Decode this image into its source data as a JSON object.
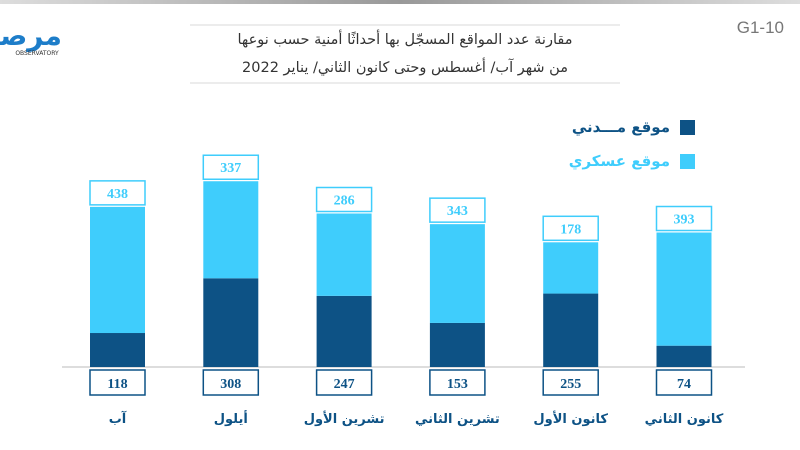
{
  "code": "G1-10",
  "logo": {
    "text": "مرصد",
    "subtitle": "OBSERVATORY"
  },
  "chart_data": {
    "type": "bar",
    "stacked": true,
    "title": "مقارنة عدد المواقع المسجّل بها أحداثًا أمنية حسب نوعها",
    "subtitle": "من شهر آب/ أغسطس وحتى كانون الثاني/ يناير 2022",
    "categories": [
      "آب",
      "أيلول",
      "تشرين الأول",
      "تشرين الثاني",
      "كانون الأول",
      "كانون الثاني"
    ],
    "series": [
      {
        "name": "موقع مـــدني",
        "color": "#0d5285",
        "values": [
          118,
          308,
          247,
          153,
          255,
          74
        ]
      },
      {
        "name": "موقع عسكري",
        "color": "#3fcdfc",
        "values": [
          438,
          337,
          286,
          343,
          178,
          393
        ]
      }
    ],
    "legend": "top-right",
    "grid": false
  }
}
